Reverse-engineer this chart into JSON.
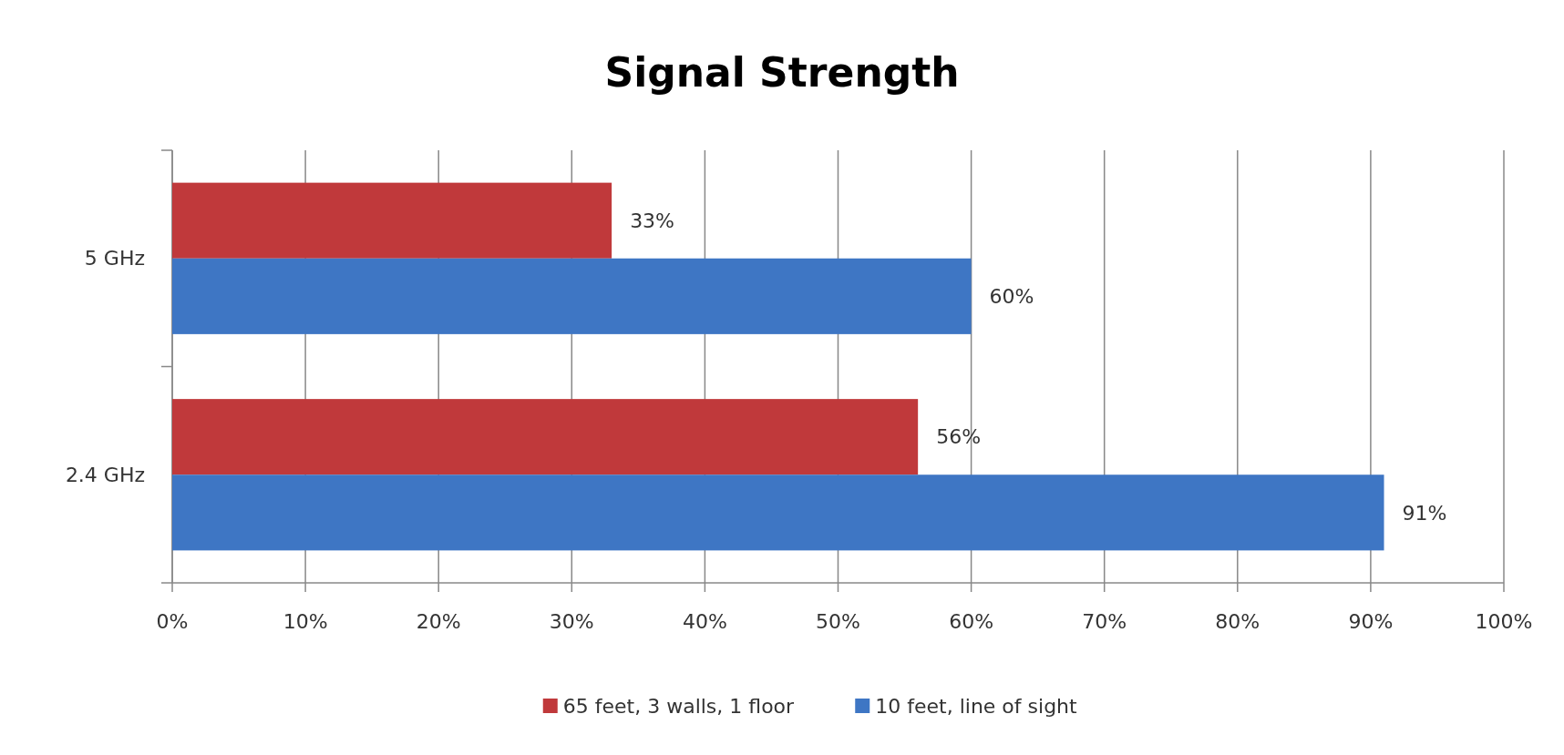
{
  "chart_data": {
    "type": "bar",
    "orientation": "horizontal",
    "title": "Signal Strength",
    "categories": [
      "5 GHz",
      "2.4 GHz"
    ],
    "series": [
      {
        "name": "65 feet, 3 walls, 1 floor",
        "color": "#c0393b",
        "values": [
          33,
          56
        ],
        "value_labels": [
          "33%",
          "56%"
        ]
      },
      {
        "name": "10 feet, line of sight",
        "color": "#3e76c4",
        "values": [
          60,
          91
        ],
        "value_labels": [
          "60%",
          "91%"
        ]
      }
    ],
    "xlim": [
      0,
      100
    ],
    "xticks": [
      {
        "value": 0,
        "label": "0%"
      },
      {
        "value": 10,
        "label": "10%"
      },
      {
        "value": 20,
        "label": "20%"
      },
      {
        "value": 30,
        "label": "30%"
      },
      {
        "value": 40,
        "label": "40%"
      },
      {
        "value": 50,
        "label": "50%"
      },
      {
        "value": 60,
        "label": "60%"
      },
      {
        "value": 70,
        "label": "70%"
      },
      {
        "value": 80,
        "label": "80%"
      },
      {
        "value": 90,
        "label": "90%"
      },
      {
        "value": 100,
        "label": "100%"
      }
    ],
    "grid": "x",
    "legend": "bottom"
  }
}
